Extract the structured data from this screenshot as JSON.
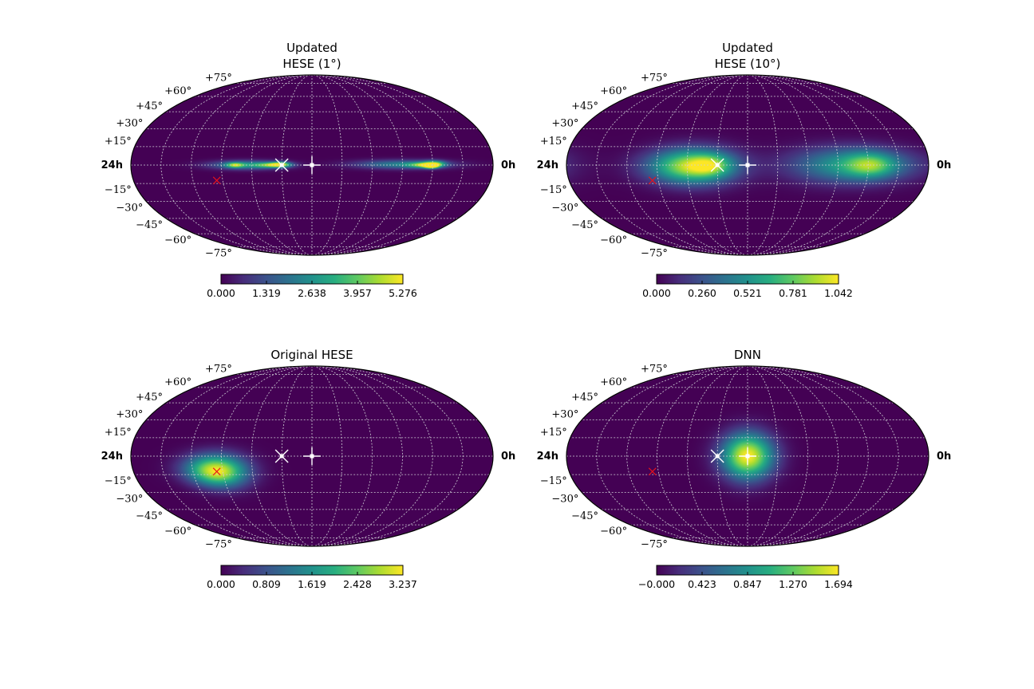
{
  "figure": {
    "layout": "2x2 grid of Mollweide sky maps",
    "projection": "mollweide",
    "colormap": "viridis",
    "grid": true,
    "grid_color": "#cfcfd6",
    "background": "#ffffff"
  },
  "axes_labels": {
    "ra_left": "24h",
    "ra_right": "0h",
    "lat_ticks": [
      "+75°",
      "+60°",
      "+45°",
      "+30°",
      "+15°",
      "−15°",
      "−30°",
      "−45°",
      "−60°",
      "−75°"
    ]
  },
  "chart_data": [
    {
      "type": "heatmap",
      "title_lines": [
        "Updated",
        "HESE (1°)"
      ],
      "colorbar": {
        "min": 0.0,
        "max": 5.276,
        "ticks": [
          "0.000",
          "1.319",
          "2.638",
          "3.957",
          "5.276"
        ]
      },
      "blobs": [
        {
          "ra_h": 16.3,
          "dec": 0,
          "sigma_ra": 1.7,
          "sigma_dec": 2.5,
          "amp": 0.5
        },
        {
          "ra_h": 17.1,
          "dec": 0,
          "sigma_ra": 0.4,
          "sigma_dec": 1.5,
          "amp": 0.55
        },
        {
          "ra_h": 14.7,
          "dec": 0,
          "sigma_ra": 0.8,
          "sigma_dec": 1.5,
          "amp": 0.5
        },
        {
          "ra_h": 14.1,
          "dec": 0.5,
          "sigma_ra": 0.45,
          "sigma_dec": 1.5,
          "amp": 0.65
        },
        {
          "ra_h": 6.0,
          "dec": 0.5,
          "sigma_ra": 2.2,
          "sigma_dec": 2.5,
          "amp": 0.45
        },
        {
          "ra_h": 4.6,
          "dec": 0,
          "sigma_ra": 0.7,
          "sigma_dec": 1.5,
          "amp": 0.55
        },
        {
          "ra_h": 3.9,
          "dec": 1.0,
          "sigma_ra": 0.5,
          "sigma_dec": 1.8,
          "amp": 0.6
        },
        {
          "ra_h": 4.1,
          "dec": -1.0,
          "sigma_ra": 0.3,
          "sigma_dec": 1.2,
          "amp": 0.85
        }
      ],
      "markers": [
        {
          "kind": "white-x",
          "ra_h": 14.0,
          "dec": 0
        },
        {
          "kind": "white-plus",
          "ra_h": 12.0,
          "dec": 0
        },
        {
          "kind": "red-x",
          "ra_h": 18.4,
          "dec": -12.5
        }
      ]
    },
    {
      "type": "heatmap",
      "title_lines": [
        "Updated",
        "HESE (10°)"
      ],
      "colorbar": {
        "min": 0.0,
        "max": 1.042,
        "ticks": [
          "0.000",
          "0.260",
          "0.521",
          "0.781",
          "1.042"
        ]
      },
      "blobs": [
        {
          "ra_h": 15.7,
          "dec": -1,
          "sigma_ra": 2.0,
          "sigma_dec": 10.0,
          "amp": 0.92
        },
        {
          "ra_h": 14.4,
          "dec": 0,
          "sigma_ra": 0.9,
          "sigma_dec": 6.0,
          "amp": 0.3
        },
        {
          "ra_h": 5.0,
          "dec": 0,
          "sigma_ra": 2.8,
          "sigma_dec": 10.0,
          "amp": 0.58
        },
        {
          "ra_h": 3.8,
          "dec": 0,
          "sigma_ra": 1.1,
          "sigma_dec": 7.0,
          "amp": 0.38
        }
      ],
      "markers": [
        {
          "kind": "white-x",
          "ra_h": 14.0,
          "dec": 0
        },
        {
          "kind": "white-plus",
          "ra_h": 12.0,
          "dec": 0
        },
        {
          "kind": "red-x",
          "ra_h": 18.4,
          "dec": -12.5
        }
      ]
    },
    {
      "type": "heatmap",
      "title_lines": [
        "Original  HESE"
      ],
      "colorbar": {
        "min": 0.0,
        "max": 3.237,
        "ticks": [
          "0.000",
          "0.809",
          "1.619",
          "2.428",
          "3.237"
        ]
      },
      "blobs": [
        {
          "ra_h": 18.4,
          "dec": -12,
          "sigma_ra": 1.4,
          "sigma_dec": 9.0,
          "amp": 1.0
        }
      ],
      "markers": [
        {
          "kind": "white-x",
          "ra_h": 14.0,
          "dec": 0
        },
        {
          "kind": "white-plus",
          "ra_h": 12.0,
          "dec": 0
        },
        {
          "kind": "red-x",
          "ra_h": 18.4,
          "dec": -12.5
        }
      ]
    },
    {
      "type": "heatmap",
      "title_lines": [
        "DNN"
      ],
      "colorbar": {
        "min": -0.0,
        "max": 1.694,
        "ticks": [
          "−0.000",
          "0.423",
          "0.847",
          "1.270",
          "1.694"
        ]
      },
      "blobs": [
        {
          "ra_h": 12.0,
          "dec": 0,
          "sigma_ra": 1.2,
          "sigma_dec": 13.0,
          "amp": 1.0
        }
      ],
      "markers": [
        {
          "kind": "white-x",
          "ra_h": 14.0,
          "dec": 0
        },
        {
          "kind": "white-plus",
          "ra_h": 12.0,
          "dec": 0
        },
        {
          "kind": "red-x",
          "ra_h": 18.4,
          "dec": -12.5
        }
      ]
    }
  ]
}
